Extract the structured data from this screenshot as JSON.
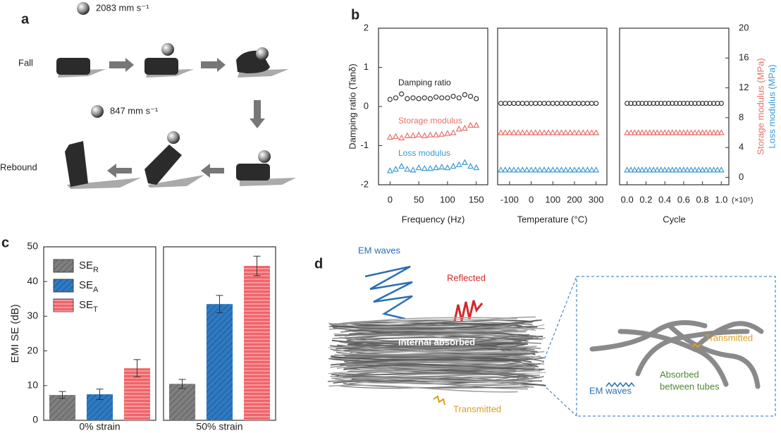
{
  "panels": {
    "a": {
      "label": "a",
      "fall_speed": "2083 mm s⁻¹",
      "fall": "Fall",
      "rebound_speed": "847 mm s⁻¹",
      "rebound": "Rebound"
    },
    "b": {
      "label": "b"
    },
    "c": {
      "label": "c"
    },
    "d": {
      "label": "d",
      "em_waves": "EM waves",
      "reflected": "Reflected",
      "internal": "Internal absorbed",
      "transmitted": "Transmitted",
      "zoom_transmitted": "Transmitted",
      "zoom_em_waves": "EM waves",
      "absorbed": [
        "Absorbed",
        "between tubes"
      ]
    }
  },
  "chart_data": [
    {
      "type": "scatter",
      "xlabel": "Frequency (Hz)",
      "ylabel": "Damping ratio (Tanδ)",
      "x": [
        0,
        10,
        20,
        30,
        40,
        50,
        60,
        70,
        80,
        90,
        100,
        110,
        120,
        130,
        140,
        150
      ],
      "xlim": [
        -20,
        170
      ],
      "xticks": [
        0,
        50,
        100,
        150
      ],
      "ylim": [
        -2,
        2
      ],
      "yticks": [
        -2,
        -1,
        0,
        1,
        2
      ],
      "y2lim": [
        -1,
        20
      ],
      "series": [
        {
          "name": "Damping ratio",
          "color": "#333333",
          "marker": "circle",
          "values": [
            0.18,
            0.22,
            0.32,
            0.2,
            0.22,
            0.2,
            0.22,
            0.2,
            0.24,
            0.22,
            0.22,
            0.26,
            0.22,
            0.3,
            0.26,
            0.2
          ]
        },
        {
          "name": "Storage modulus",
          "color": "#e8706a",
          "marker": "triangle",
          "axis": "y2",
          "values": [
            5.4,
            5.5,
            5.3,
            5.6,
            5.6,
            5.7,
            5.6,
            5.7,
            5.7,
            5.8,
            5.9,
            6.0,
            6.5,
            6.6,
            7.0,
            7.0
          ]
        },
        {
          "name": "Loss modulus",
          "color": "#3a9ad6",
          "marker": "triangle",
          "axis": "y2",
          "values": [
            0.9,
            1.1,
            1.5,
            1.1,
            1.0,
            1.3,
            1.2,
            1.2,
            1.3,
            1.4,
            1.3,
            1.5,
            1.7,
            2.0,
            1.5,
            1.3
          ]
        }
      ]
    },
    {
      "type": "scatter",
      "xlabel": "Temperature (°C)",
      "x": [
        -140,
        -120,
        -100,
        -80,
        -60,
        -40,
        -20,
        0,
        20,
        40,
        60,
        80,
        100,
        120,
        140,
        160,
        180,
        200,
        220,
        240,
        260,
        280,
        300
      ],
      "xlim": [
        -155,
        350
      ],
      "xticks": [
        -100,
        0,
        100,
        200,
        300
      ],
      "ylim": [
        -2,
        2
      ],
      "y2lim": [
        -1,
        20
      ],
      "series": [
        {
          "color": "#333333",
          "marker": "circle",
          "values": [
            0.08,
            0.08,
            0.08,
            0.08,
            0.08,
            0.08,
            0.08,
            0.08,
            0.08,
            0.08,
            0.08,
            0.08,
            0.08,
            0.08,
            0.08,
            0.08,
            0.08,
            0.08,
            0.08,
            0.08,
            0.08,
            0.08,
            0.08
          ]
        },
        {
          "color": "#e8706a",
          "marker": "triangle",
          "axis": "y2",
          "values": [
            6.0,
            6.0,
            6.0,
            6.0,
            6.0,
            6.0,
            6.0,
            6.0,
            6.0,
            6.0,
            6.0,
            6.0,
            6.0,
            6.0,
            6.0,
            6.0,
            6.0,
            6.0,
            6.0,
            6.0,
            6.0,
            6.0,
            6.0
          ]
        },
        {
          "color": "#3a9ad6",
          "marker": "triangle",
          "axis": "y2",
          "values": [
            1.0,
            1.0,
            1.0,
            1.0,
            1.0,
            1.0,
            1.0,
            1.0,
            1.0,
            1.0,
            1.0,
            1.0,
            1.0,
            1.0,
            1.0,
            1.0,
            1.0,
            1.0,
            1.0,
            1.0,
            1.0,
            1.0,
            1.0
          ]
        }
      ]
    },
    {
      "type": "scatter",
      "xlabel": "Cycle",
      "x_scale_label": "(×10⁵)",
      "x": [
        0,
        0.04,
        0.08,
        0.12,
        0.16,
        0.2,
        0.24,
        0.28,
        0.32,
        0.36,
        0.4,
        0.44,
        0.48,
        0.52,
        0.56,
        0.6,
        0.64,
        0.68,
        0.72,
        0.76,
        0.8,
        0.84,
        0.88,
        0.92,
        0.96,
        1
      ],
      "xlim": [
        -0.08,
        1.08
      ],
      "xticks": [
        {
          "value": 0,
          "label": "0.0"
        },
        0.2,
        0.4,
        0.6,
        0.8,
        {
          "value": 1,
          "label": "1.0"
        }
      ],
      "ylim": [
        -2,
        2
      ],
      "y2lim": [
        -1,
        20
      ],
      "y2ticks": [
        0,
        4,
        8,
        12,
        16,
        20
      ],
      "y2labels": [
        "Storage modulus (MPa)",
        "Loss modulus (MPa)"
      ],
      "series": [
        {
          "color": "#333333",
          "marker": "circle",
          "values": [
            0.08,
            0.08,
            0.08,
            0.08,
            0.08,
            0.08,
            0.08,
            0.08,
            0.08,
            0.08,
            0.08,
            0.08,
            0.08,
            0.08,
            0.08,
            0.08,
            0.08,
            0.08,
            0.08,
            0.08,
            0.08,
            0.08,
            0.08,
            0.08,
            0.08,
            0.08
          ]
        },
        {
          "color": "#e8706a",
          "marker": "triangle",
          "axis": "y2",
          "values": [
            6.0,
            6.0,
            6.0,
            6.0,
            6.0,
            6.0,
            6.0,
            6.0,
            6.0,
            6.0,
            6.0,
            6.0,
            6.0,
            6.0,
            6.0,
            6.0,
            6.0,
            6.0,
            6.0,
            6.0,
            6.0,
            6.0,
            6.0,
            6.0,
            6.0,
            6.0
          ]
        },
        {
          "color": "#3a9ad6",
          "marker": "triangle",
          "axis": "y2",
          "values": [
            1.0,
            1.0,
            1.0,
            1.0,
            1.0,
            1.0,
            1.0,
            1.0,
            1.0,
            1.0,
            1.0,
            1.0,
            1.0,
            1.0,
            1.0,
            1.0,
            1.0,
            1.0,
            1.0,
            1.0,
            1.0,
            1.0,
            1.0,
            1.0,
            1.0,
            1.0
          ]
        }
      ]
    },
    {
      "type": "bar",
      "ylabel": "EMI SE (dB)",
      "categories": [
        "0% strain"
      ],
      "ylim": [
        0,
        50
      ],
      "yticks": [
        0,
        10,
        20,
        30,
        40,
        50
      ],
      "legend": "upper left",
      "series": [
        {
          "name": "SER",
          "color": "#7f7f7f",
          "hatch": "diagonal",
          "values": [
            7.3
          ],
          "errors": [
            1.0
          ]
        },
        {
          "name": "SEA",
          "color": "#2e7ac4",
          "hatch": "diagonal",
          "values": [
            7.5
          ],
          "errors": [
            1.5
          ]
        },
        {
          "name": "SET",
          "color": "#f0646a",
          "hatch": "horizontal",
          "values": [
            15.0
          ],
          "errors": [
            2.5
          ]
        }
      ]
    },
    {
      "type": "bar",
      "categories": [
        "50% strain"
      ],
      "ylim": [
        0,
        50
      ],
      "series": [
        {
          "color": "#7f7f7f",
          "hatch": "diagonal",
          "values": [
            10.5
          ],
          "errors": [
            1.3
          ]
        },
        {
          "color": "#2e7ac4",
          "hatch": "diagonal",
          "values": [
            33.5
          ],
          "errors": [
            2.5
          ]
        },
        {
          "color": "#f0646a",
          "hatch": "horizontal",
          "values": [
            44.5
          ],
          "errors": [
            2.8
          ]
        }
      ]
    }
  ]
}
